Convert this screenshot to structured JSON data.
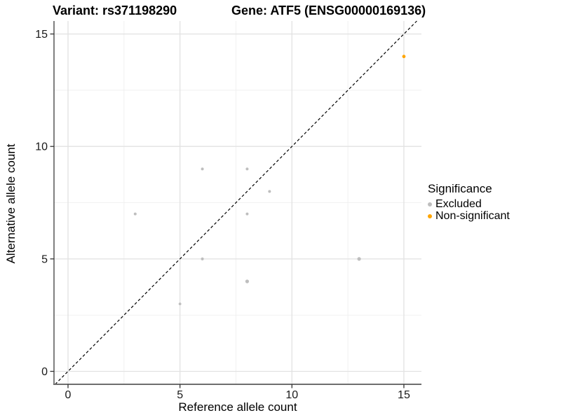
{
  "title": {
    "variant": "Variant: rs371198290",
    "gene": "Gene: ATF5 (ENSG00000169136)"
  },
  "axes": {
    "x": {
      "label": "Reference allele count",
      "ticks": [
        "0",
        "5",
        "10",
        "15"
      ]
    },
    "y": {
      "label": "Alternative allele count",
      "ticks": [
        "0",
        "5",
        "10",
        "15"
      ]
    }
  },
  "legend": {
    "title": "Significance",
    "items": [
      {
        "label": "Excluded",
        "color": "#bebebe"
      },
      {
        "label": "Non-significant",
        "color": "#ffa500"
      }
    ]
  },
  "chart_data": {
    "type": "scatter",
    "title": "Variant: rs371198290   Gene: ATF5 (ENSG00000169136)",
    "xlabel": "Reference allele count",
    "ylabel": "Alternative allele count",
    "xlim": [
      -0.65,
      15.75
    ],
    "ylim": [
      -0.6,
      15.6
    ],
    "x_ticks": [
      0,
      5,
      10,
      15
    ],
    "y_ticks": [
      0,
      5,
      10,
      15
    ],
    "grid": true,
    "minor_grid": true,
    "reference_line": "dashed identity line y = x",
    "legend_position": "right",
    "colors": {
      "excluded": "#bebebe",
      "non_significant": "#ffa500",
      "grid_major": "#e2e2e2",
      "grid_minor": "#efefef",
      "axis": "#333333"
    },
    "series": [
      {
        "name": "Excluded",
        "color": "#bebebe",
        "points": [
          [
            3,
            7,
            2
          ],
          [
            5,
            3,
            1.9
          ],
          [
            6,
            5,
            2.1
          ],
          [
            6,
            9,
            2
          ],
          [
            8,
            4,
            2.6
          ],
          [
            8,
            7,
            2
          ],
          [
            8,
            9,
            2
          ],
          [
            9,
            8,
            2
          ],
          [
            13,
            5,
            2.6
          ]
        ]
      },
      {
        "name": "Non-significant",
        "color": "#ffa500",
        "points": [
          [
            15,
            14,
            2.4
          ]
        ]
      }
    ]
  }
}
